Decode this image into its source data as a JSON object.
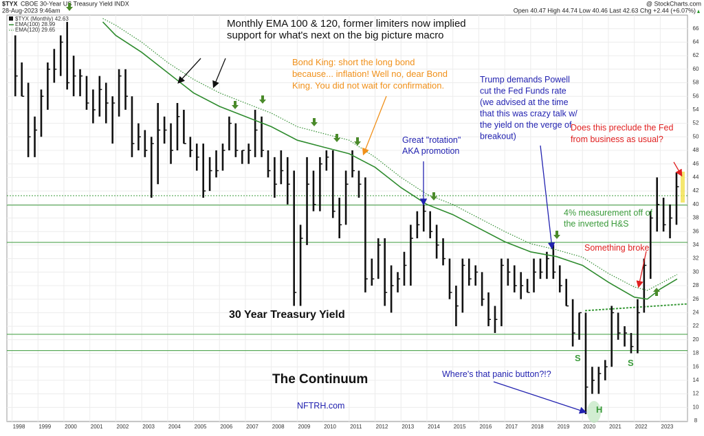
{
  "header": {
    "symbol": "$TYX",
    "title": "CBOE 30-Year US Treasury Yield INDX",
    "date": "28-Aug-2023 9:46am",
    "quote": "Open 40.47  High 44.74  Low 40.46  Last 42.63  Chg +2.44 (+6.07%)",
    "source": "@ StockCharts.com"
  },
  "chart_data": {
    "type": "hlc",
    "legend": [
      "$TYX (Monthly) 42.63",
      "EMA(100) 28.99",
      "EMA(120) 29.65"
    ],
    "color": "#111111",
    "x": [
      1998,
      1998.25,
      1998.5,
      1998.75,
      1999,
      1999.25,
      1999.5,
      1999.75,
      2000,
      2000.25,
      2000.5,
      2000.75,
      2001,
      2001.25,
      2001.5,
      2001.75,
      2002,
      2002.25,
      2002.5,
      2002.75,
      2003,
      2003.25,
      2003.5,
      2003.75,
      2004,
      2004.25,
      2004.5,
      2004.75,
      2005,
      2005.25,
      2005.5,
      2005.75,
      2006,
      2006.25,
      2006.5,
      2006.75,
      2007,
      2007.25,
      2007.5,
      2007.75,
      2008,
      2008.25,
      2008.5,
      2008.75,
      2009,
      2009.25,
      2009.5,
      2009.75,
      2010,
      2010.25,
      2010.5,
      2010.75,
      2011,
      2011.25,
      2011.5,
      2011.75,
      2012,
      2012.25,
      2012.5,
      2012.75,
      2013,
      2013.25,
      2013.5,
      2013.75,
      2014,
      2014.25,
      2014.5,
      2014.75,
      2015,
      2015.25,
      2015.5,
      2015.75,
      2016,
      2016.25,
      2016.5,
      2016.75,
      2017,
      2017.25,
      2017.5,
      2017.75,
      2018,
      2018.25,
      2018.5,
      2018.75,
      2019,
      2019.25,
      2019.5,
      2019.75,
      2020,
      2020.25,
      2020.5,
      2020.75,
      2021,
      2021.25,
      2021.5,
      2021.75,
      2022,
      2022.25,
      2022.5,
      2022.75,
      2023,
      2023.25,
      2023.5
    ],
    "high": [
      65,
      61,
      58,
      53,
      57,
      61,
      63,
      65,
      67,
      62,
      60,
      59,
      57,
      59,
      58,
      56,
      60,
      60,
      56,
      52,
      51,
      50,
      55,
      53,
      52,
      55,
      54,
      50,
      49,
      49,
      47,
      48,
      49,
      53,
      52,
      48,
      49,
      54,
      53,
      48,
      47,
      48,
      47,
      45,
      37,
      47,
      45,
      47,
      48,
      48,
      41,
      45,
      48,
      45,
      44,
      32,
      35,
      35,
      31,
      30,
      33,
      37,
      39,
      40,
      39,
      37,
      35,
      32,
      28,
      32,
      32,
      31,
      30,
      27,
      25,
      32,
      32,
      31,
      30,
      29,
      32,
      32,
      33,
      34,
      31,
      29,
      26,
      24,
      24,
      16,
      16,
      17,
      25,
      24,
      22,
      21,
      26,
      32,
      39,
      44,
      41,
      40,
      44.74
    ],
    "low": [
      56,
      56,
      47,
      47,
      50,
      54,
      58,
      59,
      57,
      56,
      56,
      54,
      52,
      53,
      52,
      49,
      53,
      54,
      47,
      48,
      47,
      41,
      43,
      49,
      46,
      48,
      49,
      47,
      45,
      41,
      42,
      44,
      45,
      48,
      47,
      46,
      46,
      47,
      47,
      44,
      41,
      43,
      40,
      25,
      25,
      34,
      39,
      39,
      45,
      38,
      35,
      37,
      44,
      41,
      27,
      28,
      29,
      25,
      24,
      27,
      28,
      28,
      35,
      36,
      35,
      32,
      31,
      26,
      22,
      24,
      28,
      28,
      25,
      22,
      21,
      22,
      28,
      27,
      26,
      27,
      27,
      29,
      29,
      29,
      27,
      25,
      19,
      20,
      9,
      12,
      12,
      14,
      16,
      20,
      19,
      18,
      18,
      24,
      29,
      36,
      36,
      35,
      37
    ],
    "close": [
      59,
      56,
      50,
      51,
      56,
      60,
      60,
      64,
      58,
      59,
      59,
      55,
      54,
      57,
      55,
      55,
      59,
      56,
      49,
      50,
      48,
      49,
      51,
      51,
      48,
      53,
      49,
      48,
      47,
      42,
      45,
      45,
      48,
      52,
      48,
      48,
      48,
      51,
      48,
      45,
      43,
      45,
      43,
      27,
      35,
      43,
      40,
      46,
      47,
      39,
      37,
      43,
      45,
      43,
      29,
      29,
      34,
      27,
      28,
      29,
      31,
      35,
      37,
      39,
      36,
      34,
      32,
      27,
      25,
      31,
      29,
      30,
      26,
      23,
      23,
      31,
      30,
      28,
      28,
      27,
      30,
      30,
      32,
      30,
      28,
      25,
      21,
      24,
      13,
      14,
      15,
      16,
      24,
      21,
      21,
      19,
      24,
      31,
      38,
      40,
      37,
      38,
      42.63
    ],
    "series": [
      {
        "name": "EMA(100)",
        "color": "#2e8b2e",
        "style": "solid",
        "x": [
          2001.5,
          2002,
          2003,
          2004,
          2005,
          2006,
          2007,
          2008,
          2009,
          2010,
          2011,
          2012,
          2013,
          2014,
          2015,
          2016,
          2017,
          2018,
          2019,
          2020,
          2021,
          2022,
          2022.5,
          2023,
          2023.65
        ],
        "values": [
          67,
          65,
          62.5,
          59.5,
          56.5,
          54.5,
          53,
          51.5,
          49.5,
          48.5,
          47.5,
          45.5,
          42.5,
          40,
          38.5,
          36.5,
          34.5,
          33,
          32.3,
          31,
          28.5,
          26.3,
          26,
          27.5,
          28.99
        ]
      },
      {
        "name": "EMA(120)",
        "color": "#2e8b2e",
        "style": "dotted",
        "x": [
          2001.5,
          2002,
          2003,
          2004,
          2005,
          2006,
          2007,
          2008,
          2009,
          2010,
          2011,
          2012,
          2013,
          2014,
          2015,
          2016,
          2017,
          2018,
          2019,
          2020,
          2021,
          2022,
          2022.5,
          2023,
          2023.65
        ],
        "values": [
          67.5,
          66.5,
          64,
          61,
          58.5,
          56.5,
          55,
          53.5,
          51.5,
          50.5,
          49.5,
          47,
          44,
          41.5,
          40,
          38,
          36,
          34.2,
          33.3,
          32.2,
          29.8,
          27.8,
          27.3,
          28.3,
          29.65
        ]
      }
    ],
    "hlines": [
      {
        "value": 41.3,
        "style": "dotted"
      },
      {
        "value": 39.9,
        "style": "solid"
      },
      {
        "value": 34.4,
        "style": "solid"
      },
      {
        "value": 20.8,
        "style": "solid"
      },
      {
        "value": 18.4,
        "style": "solid"
      }
    ],
    "hline_color": "#3a9a3a",
    "trendline": {
      "x": [
        2020.1,
        2024.05
      ],
      "y": [
        24.3,
        25.3
      ]
    },
    "xlim": [
      1997.8,
      2024.05
    ],
    "ylim": [
      7.9,
      68
    ],
    "xticks": [
      1998,
      1999,
      2000,
      2001,
      2002,
      2003,
      2004,
      2005,
      2006,
      2007,
      2008,
      2009,
      2010,
      2011,
      2012,
      2013,
      2014,
      2015,
      2016,
      2017,
      2018,
      2019,
      2020,
      2021,
      2022,
      2023
    ],
    "yticks": [
      8,
      10,
      12,
      14,
      16,
      18,
      20,
      22,
      24,
      26,
      28,
      30,
      32,
      34,
      36,
      38,
      40,
      42,
      44,
      46,
      48,
      50,
      52,
      54,
      56,
      58,
      60,
      62,
      64,
      66
    ],
    "grid": true,
    "annotations": [
      [
        "Monthly EMA 100 & 120, former limiters now implied",
        "support for what's next on the big picture macro"
      ],
      [
        "Bond King: short the long bond",
        "because... inflation! Well no, dear Bond",
        "King. You did not wait for confirmation."
      ],
      [
        "Trump demands Powell",
        "cut the Fed Funds rate",
        "(we advised at the time",
        "that this was crazy talk w/",
        "the yield on the verge of",
        "breakout)"
      ],
      [
        "Does this preclude the Fed",
        "from business as usual?"
      ],
      [
        "Great \"rotation\"",
        "AKA promotion"
      ],
      [
        "4% measurement off of",
        "the inverted H&S"
      ],
      [
        "Something broke"
      ],
      [
        "30 Year Treasury Yield"
      ],
      [
        "The Continuum"
      ],
      [
        "Where's that panic button?!?"
      ],
      [
        "NFTRH.com"
      ],
      [
        "S"
      ],
      [
        "S"
      ],
      [
        "H"
      ]
    ]
  }
}
